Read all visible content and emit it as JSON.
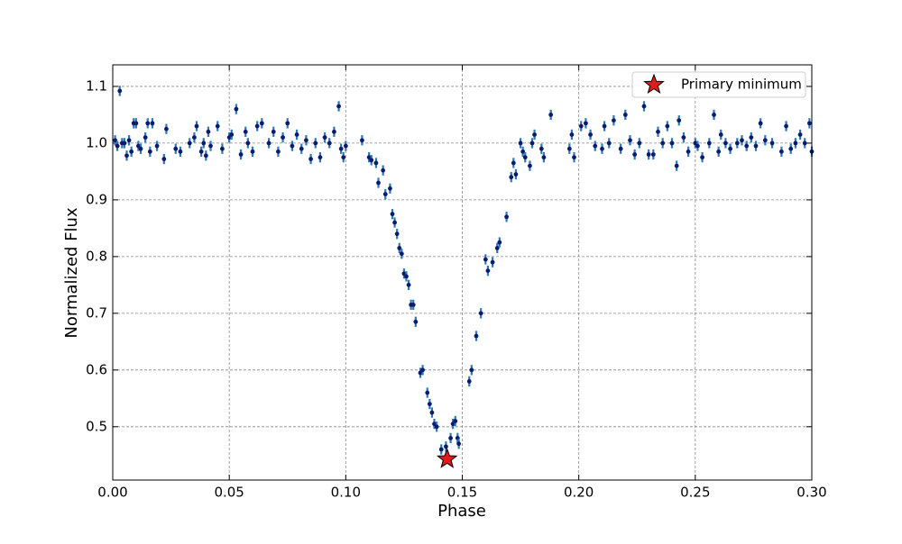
{
  "chart_data": {
    "type": "scatter",
    "xlabel": "Phase",
    "ylabel": "Normalized Flux",
    "xlim": [
      0,
      0.3
    ],
    "ylim": [
      0.406,
      1.138
    ],
    "xticks": [
      {
        "value": 0,
        "label": "0.00"
      },
      {
        "value": 0.05,
        "label": "0.05"
      },
      {
        "value": 0.1,
        "label": "0.10"
      },
      {
        "value": 0.15,
        "label": "0.15"
      },
      {
        "value": 0.2,
        "label": "0.20"
      },
      {
        "value": 0.25,
        "label": "0.25"
      },
      {
        "value": 0.3,
        "label": "0.30"
      }
    ],
    "yticks": [
      0.5,
      0.6,
      0.7,
      0.8,
      0.9,
      {
        "value": 1.0,
        "label": "1.0"
      },
      1.1
    ],
    "grid": true,
    "legend": "upper right",
    "series": [
      {
        "color": "#0d1a6e",
        "errcolor": "#2a7ab8",
        "yerr": 0.009,
        "marker": "circle",
        "x": [
          0.001,
          0.002,
          0.003,
          0.004,
          0.005,
          0.006,
          0.007,
          0.008,
          0.009,
          0.01,
          0.011,
          0.012,
          0.014,
          0.015,
          0.016,
          0.017,
          0.019,
          0.022,
          0.023,
          0.027,
          0.029,
          0.033,
          0.035,
          0.036,
          0.038,
          0.039,
          0.04,
          0.041,
          0.042,
          0.045,
          0.047,
          0.05,
          0.051,
          0.053,
          0.055,
          0.057,
          0.058,
          0.06,
          0.062,
          0.064,
          0.067,
          0.069,
          0.071,
          0.073,
          0.075,
          0.077,
          0.079,
          0.081,
          0.083,
          0.085,
          0.087,
          0.089,
          0.091,
          0.093,
          0.095,
          0.097,
          0.098,
          0.099,
          0.1,
          0.107,
          0.11,
          0.111,
          0.113,
          0.114,
          0.116,
          0.117,
          0.119,
          0.12,
          0.121,
          0.122,
          0.123,
          0.124,
          0.125,
          0.126,
          0.127,
          0.128,
          0.129,
          0.13,
          0.132,
          0.133,
          0.135,
          0.136,
          0.137,
          0.138,
          0.139,
          0.141,
          0.143,
          0.145,
          0.146,
          0.147,
          0.148,
          0.1485,
          0.153,
          0.154,
          0.156,
          0.158,
          0.16,
          0.161,
          0.163,
          0.165,
          0.166,
          0.169,
          0.171,
          0.172,
          0.173,
          0.175,
          0.176,
          0.177,
          0.179,
          0.18,
          0.181,
          0.184,
          0.185,
          0.188,
          0.196,
          0.197,
          0.198,
          0.201,
          0.203,
          0.205,
          0.207,
          0.21,
          0.211,
          0.213,
          0.215,
          0.218,
          0.22,
          0.222,
          0.224,
          0.226,
          0.228,
          0.23,
          0.232,
          0.234,
          0.236,
          0.238,
          0.24,
          0.242,
          0.243,
          0.245,
          0.247,
          0.25,
          0.251,
          0.253,
          0.256,
          0.258,
          0.26,
          0.261,
          0.263,
          0.265,
          0.268,
          0.27,
          0.272,
          0.274,
          0.276,
          0.278,
          0.28,
          0.283,
          0.287,
          0.289,
          0.291,
          0.293,
          0.295,
          0.297,
          0.299,
          0.3
        ],
        "values": [
          1.005,
          0.995,
          1.092,
          1.0,
          1.0,
          0.978,
          1.005,
          0.985,
          1.035,
          1.035,
          0.995,
          0.99,
          1.01,
          1.035,
          0.985,
          1.035,
          0.995,
          0.972,
          1.025,
          0.99,
          0.985,
          1.0,
          1.01,
          1.03,
          0.985,
          1.0,
          0.978,
          1.02,
          0.995,
          1.03,
          0.99,
          1.01,
          1.015,
          1.06,
          0.98,
          1.02,
          1.0,
          0.985,
          1.03,
          1.035,
          1.0,
          1.02,
          0.985,
          1.01,
          1.035,
          0.995,
          1.015,
          0.99,
          1.005,
          0.972,
          1.0,
          0.975,
          1.01,
          1.0,
          1.02,
          1.065,
          0.99,
          0.975,
          0.995,
          1.005,
          0.975,
          0.97,
          0.965,
          0.93,
          0.952,
          0.91,
          0.92,
          0.875,
          0.86,
          0.84,
          0.815,
          0.805,
          0.77,
          0.765,
          0.75,
          0.715,
          0.715,
          0.685,
          0.595,
          0.6,
          0.56,
          0.54,
          0.525,
          0.505,
          0.5,
          0.46,
          0.465,
          0.48,
          0.505,
          0.51,
          0.48,
          0.47,
          0.58,
          0.6,
          0.66,
          0.7,
          0.795,
          0.775,
          0.79,
          0.815,
          0.825,
          0.87,
          0.94,
          0.965,
          0.945,
          1.0,
          0.985,
          0.975,
          0.96,
          1.0,
          1.015,
          0.99,
          0.975,
          1.05,
          0.99,
          1.015,
          0.975,
          1.03,
          1.035,
          1.015,
          0.995,
          0.99,
          1.03,
          1.0,
          1.04,
          0.99,
          1.05,
          1.005,
          0.98,
          1.0,
          1.065,
          0.98,
          0.98,
          1.02,
          1.0,
          1.03,
          1.0,
          0.96,
          1.04,
          1.01,
          0.985,
          1.0,
          0.995,
          0.975,
          1.0,
          1.05,
          0.985,
          1.015,
          1.0,
          0.99,
          1.0,
          1.005,
          0.995,
          1.01,
          0.995,
          1.035,
          1.005,
          1.0,
          0.985,
          1.03,
          0.99,
          1.0,
          1.015,
          1.0,
          1.035,
          0.985
        ]
      },
      {
        "name": "Primary minimum",
        "color": "#e31a1c",
        "marker": "star",
        "x": [
          0.1435
        ],
        "values": [
          0.443
        ]
      }
    ]
  }
}
